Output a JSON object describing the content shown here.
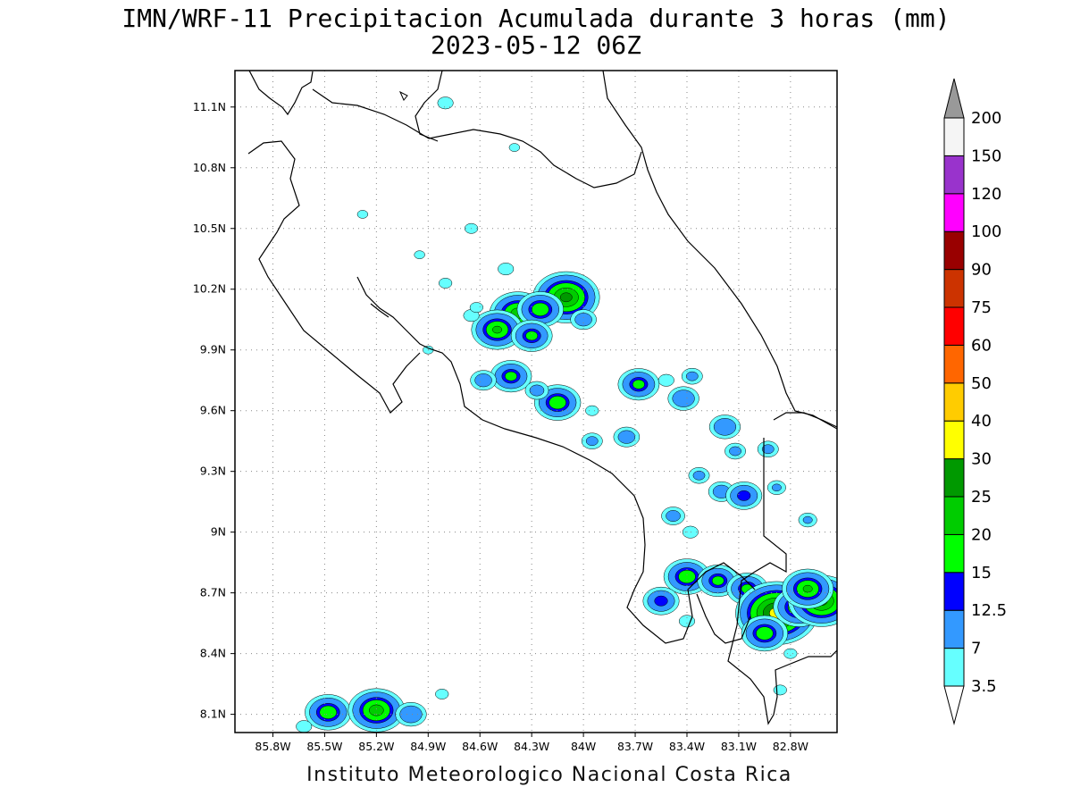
{
  "title_line1": "IMN/WRF-11 Precipitacion Acumulada durante 3 horas (mm)",
  "title_line2": "2023-05-12 06Z",
  "footer": "Instituto Meteorologico Nacional Costa Rica",
  "axes": {
    "lon_ticks": [
      "85.8W",
      "85.5W",
      "85.2W",
      "84.9W",
      "84.6W",
      "84.3W",
      "84W",
      "83.7W",
      "83.4W",
      "83.1W",
      "82.8W"
    ],
    "lat_ticks": [
      "11.1N",
      "10.8N",
      "10.5N",
      "10.2N",
      "9.9N",
      "9.6N",
      "9.3N",
      "9N",
      "8.7N",
      "8.4N",
      "8.1N"
    ],
    "lon_range": [
      -86.02,
      -82.53
    ],
    "lat_range": [
      8.01,
      11.28
    ],
    "grid": "dotted"
  },
  "colorbar": {
    "levels": [
      "3.5",
      "7",
      "12.5",
      "15",
      "20",
      "25",
      "30",
      "40",
      "50",
      "60",
      "75",
      "90",
      "100",
      "120",
      "150",
      "200"
    ],
    "colors": [
      "#66ffff",
      "#3399ff",
      "#0000ff",
      "#00ff00",
      "#00cc00",
      "#009900",
      "#ffff00",
      "#ffcc00",
      "#ff6600",
      "#ff0000",
      "#cc3300",
      "#990000",
      "#ff00ff",
      "#9933cc",
      "#f5f5f5"
    ],
    "low_cap_color": "#ffffff",
    "high_cap_color": "#999999"
  },
  "precip_cells": [
    {
      "lon": -84.38,
      "lat": 10.08,
      "mm": 22
    },
    {
      "lon": -84.1,
      "lat": 10.16,
      "mm": 26
    },
    {
      "lon": -84.25,
      "lat": 10.1,
      "mm": 18
    },
    {
      "lon": -84.5,
      "lat": 10.0,
      "mm": 20
    },
    {
      "lon": -84.3,
      "lat": 9.97,
      "mm": 16
    },
    {
      "lon": -84.0,
      "lat": 10.05,
      "mm": 10
    },
    {
      "lon": -84.65,
      "lat": 10.07,
      "mm": 6
    },
    {
      "lon": -84.42,
      "lat": 9.77,
      "mm": 16
    },
    {
      "lon": -84.58,
      "lat": 9.75,
      "mm": 10
    },
    {
      "lon": -84.15,
      "lat": 9.64,
      "mm": 18
    },
    {
      "lon": -84.27,
      "lat": 9.7,
      "mm": 9
    },
    {
      "lon": -83.95,
      "lat": 9.6,
      "mm": 5
    },
    {
      "lon": -83.68,
      "lat": 9.73,
      "mm": 16
    },
    {
      "lon": -83.42,
      "lat": 9.66,
      "mm": 12
    },
    {
      "lon": -83.52,
      "lat": 9.75,
      "mm": 6
    },
    {
      "lon": -83.37,
      "lat": 9.77,
      "mm": 8
    },
    {
      "lon": -83.75,
      "lat": 9.47,
      "mm": 10
    },
    {
      "lon": -83.95,
      "lat": 9.45,
      "mm": 8
    },
    {
      "lon": -83.18,
      "lat": 9.52,
      "mm": 12
    },
    {
      "lon": -83.12,
      "lat": 9.4,
      "mm": 8
    },
    {
      "lon": -82.93,
      "lat": 9.41,
      "mm": 8
    },
    {
      "lon": -83.33,
      "lat": 9.28,
      "mm": 8
    },
    {
      "lon": -83.2,
      "lat": 9.2,
      "mm": 10
    },
    {
      "lon": -83.07,
      "lat": 9.18,
      "mm": 14
    },
    {
      "lon": -82.88,
      "lat": 9.22,
      "mm": 7
    },
    {
      "lon": -83.48,
      "lat": 9.08,
      "mm": 9
    },
    {
      "lon": -83.38,
      "lat": 9.0,
      "mm": 6
    },
    {
      "lon": -82.7,
      "lat": 9.06,
      "mm": 7
    },
    {
      "lon": -83.4,
      "lat": 8.78,
      "mm": 18
    },
    {
      "lon": -83.22,
      "lat": 8.76,
      "mm": 16
    },
    {
      "lon": -83.05,
      "lat": 8.72,
      "mm": 16
    },
    {
      "lon": -82.88,
      "lat": 8.6,
      "mm": 32
    },
    {
      "lon": -82.75,
      "lat": 8.63,
      "mm": 20
    },
    {
      "lon": -82.62,
      "lat": 8.66,
      "mm": 26
    },
    {
      "lon": -82.7,
      "lat": 8.72,
      "mm": 20
    },
    {
      "lon": -82.95,
      "lat": 8.5,
      "mm": 18
    },
    {
      "lon": -83.55,
      "lat": 8.66,
      "mm": 14
    },
    {
      "lon": -83.4,
      "lat": 8.56,
      "mm": 6
    },
    {
      "lon": -82.8,
      "lat": 8.4,
      "mm": 5
    },
    {
      "lon": -82.86,
      "lat": 8.22,
      "mm": 5
    },
    {
      "lon": -85.48,
      "lat": 8.11,
      "mm": 18
    },
    {
      "lon": -85.2,
      "lat": 8.12,
      "mm": 22
    },
    {
      "lon": -85.0,
      "lat": 8.1,
      "mm": 12
    },
    {
      "lon": -85.62,
      "lat": 8.04,
      "mm": 6
    },
    {
      "lon": -84.82,
      "lat": 8.2,
      "mm": 5
    },
    {
      "lon": -84.8,
      "lat": 11.12,
      "mm": 6
    },
    {
      "lon": -84.62,
      "lat": 10.11,
      "mm": 5
    },
    {
      "lon": -84.8,
      "lat": 10.23,
      "mm": 5
    },
    {
      "lon": -84.95,
      "lat": 10.37,
      "mm": 4
    },
    {
      "lon": -85.28,
      "lat": 10.57,
      "mm": 4
    },
    {
      "lon": -84.9,
      "lat": 9.9,
      "mm": 4
    },
    {
      "lon": -84.65,
      "lat": 10.5,
      "mm": 5
    },
    {
      "lon": -84.45,
      "lat": 10.3,
      "mm": 6
    },
    {
      "lon": -84.4,
      "lat": 10.9,
      "mm": 4
    }
  ]
}
